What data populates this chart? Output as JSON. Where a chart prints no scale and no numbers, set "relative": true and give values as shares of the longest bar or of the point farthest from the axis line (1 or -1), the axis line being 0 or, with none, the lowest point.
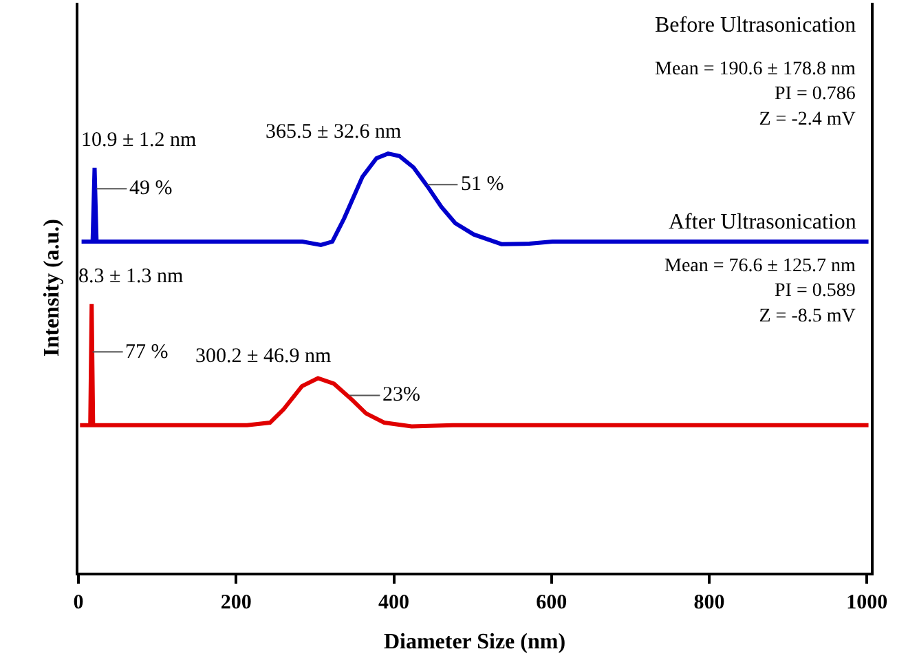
{
  "chart_data": {
    "type": "line",
    "relative": true,
    "xlabel": "Diameter Size (nm)",
    "ylabel": "Intensity (a.u.)",
    "xlim": [
      0,
      1005
    ],
    "xticks": [
      0,
      200,
      400,
      600,
      800,
      1000
    ],
    "marker": "none",
    "line_style": "solid",
    "series": [
      {
        "color": "#0000cc",
        "x": [
          4,
          18,
          20.5,
          23,
          248.7,
          284,
          307.5,
          322,
          336.9,
          360.3,
          378,
          392.7,
          407.3,
          425,
          442.6,
          460.2,
          477.9,
          501.4,
          536.5,
          571.8,
          601.2,
          1002
        ],
        "values": [
          0.79,
          0.79,
          0.966,
          0.79,
          0.79,
          0.79,
          0.782,
          0.79,
          0.845,
          0.945,
          0.989,
          1.0,
          0.994,
          0.967,
          0.922,
          0.873,
          0.834,
          0.807,
          0.784,
          0.785,
          0.79,
          0.79
        ]
      },
      {
        "color": "#e00000",
        "x": [
          2,
          15,
          16.8,
          18.6,
          213.9,
          243,
          260.3,
          283.5,
          303.8,
          324,
          347.3,
          364.7,
          387.8,
          422.6,
          474.8,
          1002
        ],
        "values": [
          0.352,
          0.352,
          0.641,
          0.352,
          0.352,
          0.358,
          0.39,
          0.445,
          0.464,
          0.451,
          0.412,
          0.38,
          0.358,
          0.349,
          0.352,
          0.352
        ]
      }
    ],
    "annotations": [
      {
        "text": "10.9 ± 1.2 nm",
        "x": 20.5,
        "y": 0.966
      },
      {
        "text": "49 %",
        "x": 23,
        "y": 0.916
      },
      {
        "text": "365.5 ± 32.6 nm",
        "x": 392.7,
        "y": 1.0
      },
      {
        "text": "51 %",
        "x": 442.6,
        "y": 0.926
      },
      {
        "text": "8.3 ± 1.3 nm",
        "x": 16.8,
        "y": 0.641
      },
      {
        "text": "77 %",
        "x": 18,
        "y": 0.527
      },
      {
        "text": "300.2 ± 46.9 nm",
        "x": 303.8,
        "y": 0.464
      },
      {
        "text": "23%",
        "x": 344,
        "y": 0.423
      },
      "Before Ultrasonication",
      "Mean = 190.6 ± 178.8 nm\nPI = 0.786\nZ = -2.4 mV",
      "After Ultrasonication",
      "Mean = 76.6 ± 125.7 nm\nPI = 0.589\nZ = -8.5 mV"
    ]
  }
}
